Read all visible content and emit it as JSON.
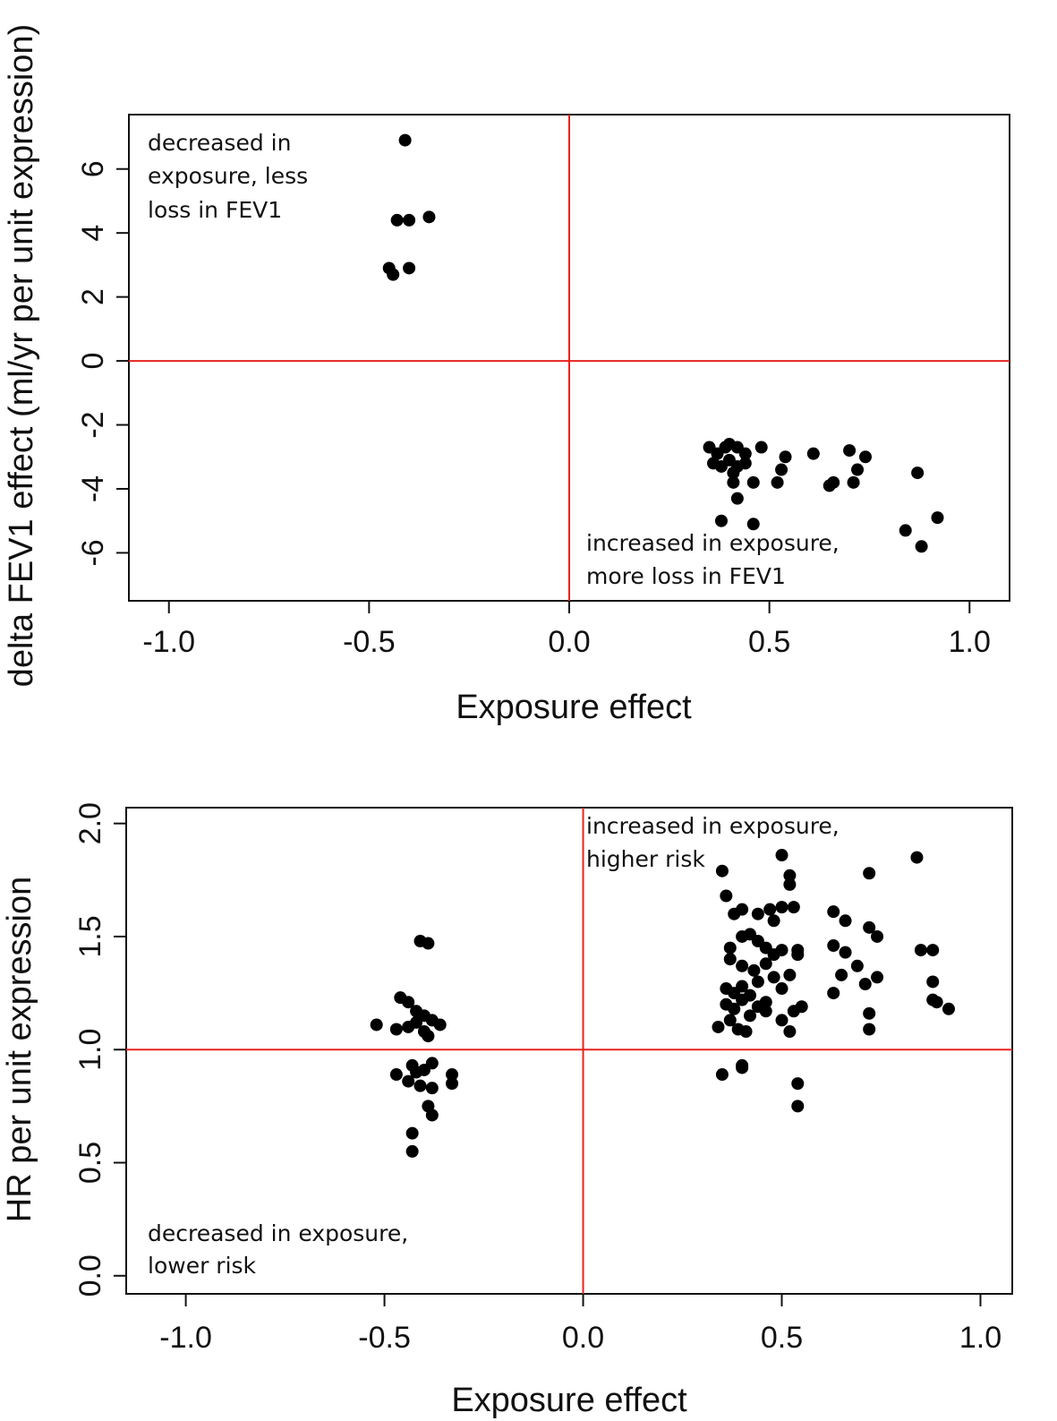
{
  "chart_data": [
    {
      "type": "scatter",
      "xlabel": "Exposure effect",
      "ylabel": "delta FEV1 effect (ml/yr per unit expression)",
      "xlim": [
        -1.1,
        1.1
      ],
      "ylim": [
        -7.5,
        7.7
      ],
      "xticks": [
        -1.0,
        -0.5,
        0.0,
        0.5,
        1.0
      ],
      "xtick_labels": [
        "-1.0",
        "-0.5",
        "0.0",
        "0.5",
        "1.0"
      ],
      "yticks": [
        -6,
        -4,
        -2,
        0,
        2,
        4,
        6
      ],
      "ytick_labels": [
        "-6",
        "-4",
        "-2",
        "0",
        "2",
        "4",
        "6"
      ],
      "reference_lines": {
        "x": 0,
        "y": 0,
        "color": "#e8231f"
      },
      "annotations": [
        {
          "lines": [
            "decreased in",
            "exposure, less",
            "loss in FEV1"
          ],
          "position": "top-left"
        },
        {
          "lines": [
            "increased in exposure,",
            "more loss in FEV1"
          ],
          "position": "bottom-center-right"
        }
      ],
      "series": [
        {
          "points": [
            [
              -0.41,
              6.9
            ],
            [
              -0.43,
              4.4
            ],
            [
              -0.4,
              4.4
            ],
            [
              -0.35,
              4.5
            ],
            [
              -0.45,
              2.9
            ],
            [
              -0.44,
              2.7
            ],
            [
              -0.4,
              2.9
            ],
            [
              0.35,
              -2.7
            ],
            [
              0.37,
              -2.9
            ],
            [
              0.39,
              -2.7
            ],
            [
              0.4,
              -2.6
            ],
            [
              0.42,
              -2.7
            ],
            [
              0.44,
              -2.9
            ],
            [
              0.48,
              -2.7
            ],
            [
              0.36,
              -3.2
            ],
            [
              0.38,
              -3.3
            ],
            [
              0.4,
              -3.1
            ],
            [
              0.42,
              -3.3
            ],
            [
              0.44,
              -3.2
            ],
            [
              0.41,
              -3.5
            ],
            [
              0.41,
              -3.8
            ],
            [
              0.42,
              -4.3
            ],
            [
              0.46,
              -3.8
            ],
            [
              0.53,
              -3.4
            ],
            [
              0.54,
              -3.0
            ],
            [
              0.52,
              -3.8
            ],
            [
              0.61,
              -2.9
            ],
            [
              0.65,
              -3.9
            ],
            [
              0.66,
              -3.8
            ],
            [
              0.7,
              -2.8
            ],
            [
              0.72,
              -3.4
            ],
            [
              0.74,
              -3.0
            ],
            [
              0.71,
              -3.8
            ],
            [
              0.38,
              -5.0
            ],
            [
              0.46,
              -5.1
            ],
            [
              0.87,
              -3.5
            ],
            [
              0.84,
              -5.3
            ],
            [
              0.92,
              -4.9
            ],
            [
              0.88,
              -5.8
            ]
          ]
        }
      ]
    },
    {
      "type": "scatter",
      "xlabel": "Exposure effect",
      "ylabel": "HR per unit expression",
      "xlim": [
        -1.15,
        1.08
      ],
      "ylim": [
        -0.08,
        2.07
      ],
      "xticks": [
        -1.0,
        -0.5,
        0.0,
        0.5,
        1.0
      ],
      "xtick_labels": [
        "-1.0",
        "-0.5",
        "0.0",
        "0.5",
        "1.0"
      ],
      "yticks": [
        0.0,
        0.5,
        1.0,
        1.5,
        2.0
      ],
      "ytick_labels": [
        "0.0",
        "0.5",
        "1.0",
        "1.5",
        "2.0"
      ],
      "reference_lines": {
        "x": 0,
        "y": 1.0,
        "color": "#e8231f"
      },
      "annotations": [
        {
          "lines": [
            "increased in exposure,",
            "higher risk"
          ],
          "position": "top-center-right"
        },
        {
          "lines": [
            "decreased in exposure,",
            "lower risk"
          ],
          "position": "bottom-left"
        }
      ],
      "series": [
        {
          "points": [
            [
              -0.41,
              1.48
            ],
            [
              -0.39,
              1.47
            ],
            [
              -0.46,
              1.23
            ],
            [
              -0.44,
              1.21
            ],
            [
              -0.42,
              1.17
            ],
            [
              -0.4,
              1.15
            ],
            [
              -0.38,
              1.13
            ],
            [
              -0.36,
              1.11
            ],
            [
              -0.52,
              1.11
            ],
            [
              -0.47,
              1.09
            ],
            [
              -0.44,
              1.1
            ],
            [
              -0.42,
              1.12
            ],
            [
              -0.4,
              1.08
            ],
            [
              -0.39,
              1.06
            ],
            [
              -0.38,
              0.94
            ],
            [
              -0.43,
              0.93
            ],
            [
              -0.4,
              0.91
            ],
            [
              -0.42,
              0.9
            ],
            [
              -0.47,
              0.89
            ],
            [
              -0.33,
              0.89
            ],
            [
              -0.44,
              0.86
            ],
            [
              -0.41,
              0.84
            ],
            [
              -0.38,
              0.83
            ],
            [
              -0.33,
              0.85
            ],
            [
              -0.39,
              0.75
            ],
            [
              -0.38,
              0.71
            ],
            [
              -0.43,
              0.63
            ],
            [
              -0.43,
              0.55
            ],
            [
              0.35,
              1.79
            ],
            [
              0.36,
              1.68
            ],
            [
              0.5,
              1.86
            ],
            [
              0.52,
              1.77
            ],
            [
              0.52,
              1.73
            ],
            [
              0.84,
              1.85
            ],
            [
              0.72,
              1.78
            ],
            [
              0.38,
              1.6
            ],
            [
              0.4,
              1.62
            ],
            [
              0.44,
              1.6
            ],
            [
              0.47,
              1.62
            ],
            [
              0.5,
              1.63
            ],
            [
              0.53,
              1.63
            ],
            [
              0.48,
              1.57
            ],
            [
              0.63,
              1.61
            ],
            [
              0.66,
              1.57
            ],
            [
              0.37,
              1.45
            ],
            [
              0.4,
              1.5
            ],
            [
              0.42,
              1.51
            ],
            [
              0.44,
              1.48
            ],
            [
              0.46,
              1.45
            ],
            [
              0.48,
              1.42
            ],
            [
              0.5,
              1.44
            ],
            [
              0.54,
              1.44
            ],
            [
              0.63,
              1.46
            ],
            [
              0.72,
              1.54
            ],
            [
              0.74,
              1.5
            ],
            [
              0.85,
              1.44
            ],
            [
              0.88,
              1.44
            ],
            [
              0.37,
              1.4
            ],
            [
              0.4,
              1.37
            ],
            [
              0.43,
              1.35
            ],
            [
              0.46,
              1.38
            ],
            [
              0.48,
              1.32
            ],
            [
              0.52,
              1.33
            ],
            [
              0.54,
              1.42
            ],
            [
              0.66,
              1.43
            ],
            [
              0.69,
              1.37
            ],
            [
              0.36,
              1.27
            ],
            [
              0.38,
              1.25
            ],
            [
              0.4,
              1.28
            ],
            [
              0.42,
              1.24
            ],
            [
              0.44,
              1.3
            ],
            [
              0.5,
              1.27
            ],
            [
              0.65,
              1.33
            ],
            [
              0.71,
              1.29
            ],
            [
              0.74,
              1.32
            ],
            [
              0.88,
              1.3
            ],
            [
              0.36,
              1.2
            ],
            [
              0.38,
              1.18
            ],
            [
              0.4,
              1.22
            ],
            [
              0.42,
              1.15
            ],
            [
              0.44,
              1.19
            ],
            [
              0.46,
              1.21
            ],
            [
              0.53,
              1.17
            ],
            [
              0.55,
              1.19
            ],
            [
              0.63,
              1.25
            ],
            [
              0.72,
              1.16
            ],
            [
              0.88,
              1.22
            ],
            [
              0.89,
              1.21
            ],
            [
              0.92,
              1.18
            ],
            [
              0.34,
              1.1
            ],
            [
              0.37,
              1.13
            ],
            [
              0.39,
              1.09
            ],
            [
              0.41,
              1.08
            ],
            [
              0.46,
              1.17
            ],
            [
              0.5,
              1.13
            ],
            [
              0.52,
              1.08
            ],
            [
              0.72,
              1.09
            ],
            [
              0.35,
              0.89
            ],
            [
              0.4,
              0.93
            ],
            [
              0.4,
              0.92
            ],
            [
              0.54,
              0.85
            ],
            [
              0.54,
              0.75
            ]
          ]
        }
      ]
    }
  ]
}
